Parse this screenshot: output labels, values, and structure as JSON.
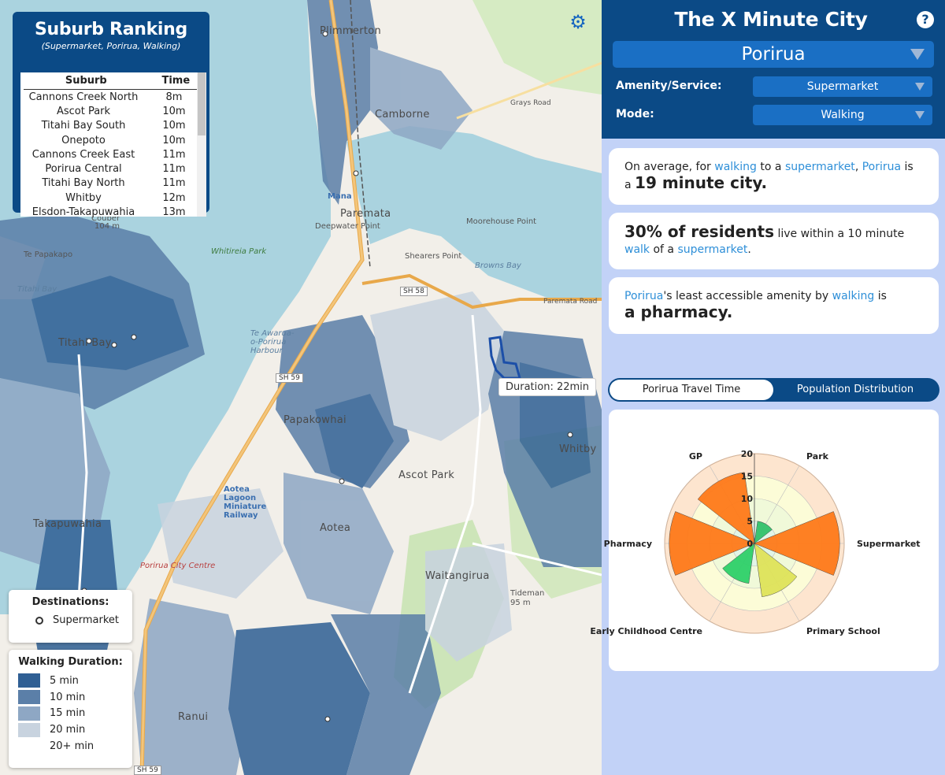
{
  "ranking": {
    "title": "Suburb Ranking",
    "subtitle": "(Supermarket, Porirua, Walking)",
    "col_suburb": "Suburb",
    "col_time": "Time",
    "rows": [
      {
        "suburb": "Cannons Creek North",
        "time": "8m"
      },
      {
        "suburb": "Ascot Park",
        "time": "10m"
      },
      {
        "suburb": "Titahi Bay South",
        "time": "10m"
      },
      {
        "suburb": "Onepoto",
        "time": "10m"
      },
      {
        "suburb": "Cannons Creek East",
        "time": "11m"
      },
      {
        "suburb": "Porirua Central",
        "time": "11m"
      },
      {
        "suburb": "Titahi Bay North",
        "time": "11m"
      },
      {
        "suburb": "Whitby",
        "time": "12m"
      },
      {
        "suburb": "Elsdon-Takapuwahia",
        "time": "13m"
      }
    ]
  },
  "map": {
    "settings_icon": "gear-icon",
    "tooltip": "Duration: 22min",
    "labels": {
      "plimmerton": "Plimmerton",
      "camborne": "Camborne",
      "paremata": "Paremata",
      "papakowhai": "Papakowhai",
      "ascot_park": "Ascot Park",
      "aotea": "Aotea",
      "waitangirua": "Waitangirua",
      "takapuwahia": "Takapuwahia",
      "ranui": "Ranui",
      "whitby": "Whitby",
      "whitireia_park": "Whitireia Park",
      "te_papakapo": "Te Papakapo",
      "titahi_bay": "Titahi Bay",
      "titahi_bay_town": "Titahi Bay",
      "moorehouse_point": "Moorehouse Point",
      "shearers_point": "Shearers Point",
      "browns_bay": "Browns Bay",
      "te_awarua": "Te Awarua-o-Porirua Harbour",
      "porirua_city_centre": "Porirua City Centre",
      "aotea_lagoon": "Aotea Lagoon Miniature Railway",
      "pauatahanui_road": "Paremata Road",
      "sh58": "SH 58",
      "sh59": "SH 59",
      "sh59b": "SH 59",
      "grays_road": "Grays Road",
      "tideman": "Tideman",
      "tideman_h": "95 m",
      "mana": "Mana",
      "deepwater_point": "Deepwater Point",
      "couber": "Couber",
      "couber_h": "104 m"
    }
  },
  "destinations": {
    "title": "Destinations:",
    "item": "Supermarket"
  },
  "walking_duration": {
    "title": "Walking Duration:",
    "items": [
      {
        "label": "5 min",
        "color": "#2f5f94"
      },
      {
        "label": "10 min",
        "color": "#5b7fa8"
      },
      {
        "label": "15 min",
        "color": "#8ea7c4"
      },
      {
        "label": "20 min",
        "color": "#c8d3df"
      },
      {
        "label": "20+ min",
        "color": "#ffffff"
      }
    ]
  },
  "panel": {
    "app_title": "The X Minute City",
    "help_label": "?",
    "city": "Porirua",
    "amenity_label": "Amenity/Service:",
    "amenity_value": "Supermarket",
    "mode_label": "Mode:",
    "mode_value": "Walking"
  },
  "cards": {
    "c1_pre": "On average, for ",
    "c1_mode": "walking",
    "c1_mid": " to a ",
    "c1_amenity": "supermarket",
    "c1_comma": ", ",
    "c1_city": "Porirua",
    "c1_is": " is",
    "c1_a": "a ",
    "c1_big": "19 minute city.",
    "c2_big": "30% of residents",
    "c2_mid": " live within a 10 minute",
    "c2_walk": "walk",
    "c2_of": " of a ",
    "c2_amenity": "supermarket",
    "c2_end": ".",
    "c3_city": "Porirua",
    "c3_mid": "'s least accessible amenity by ",
    "c3_mode": "walking",
    "c3_is": " is",
    "c3_big": "a pharmacy."
  },
  "tabs": {
    "travel_time": "Porirua Travel Time",
    "population": "Population Distribution"
  },
  "chart_data": {
    "type": "polar-bar",
    "title": "",
    "categories": [
      "Park",
      "Supermarket",
      "Primary School",
      "Early Childhood Centre",
      "Pharmacy",
      "GP"
    ],
    "values": [
      5,
      19,
      12,
      9,
      19,
      16
    ],
    "colors": [
      "#33c26b",
      "#ff7a1a",
      "#dfe35a",
      "#2fd06a",
      "#ff7a1a",
      "#ff7a1a"
    ],
    "radial_ticks": [
      0,
      5,
      10,
      15,
      20
    ],
    "rlim": [
      0,
      20
    ],
    "bands": [
      {
        "from": 0,
        "to": 5,
        "color": "#e1f5e7"
      },
      {
        "from": 5,
        "to": 10,
        "color": "#f0f9d9"
      },
      {
        "from": 10,
        "to": 15,
        "color": "#fcfcd7"
      },
      {
        "from": 15,
        "to": 20,
        "color": "#fde5cf"
      }
    ]
  }
}
